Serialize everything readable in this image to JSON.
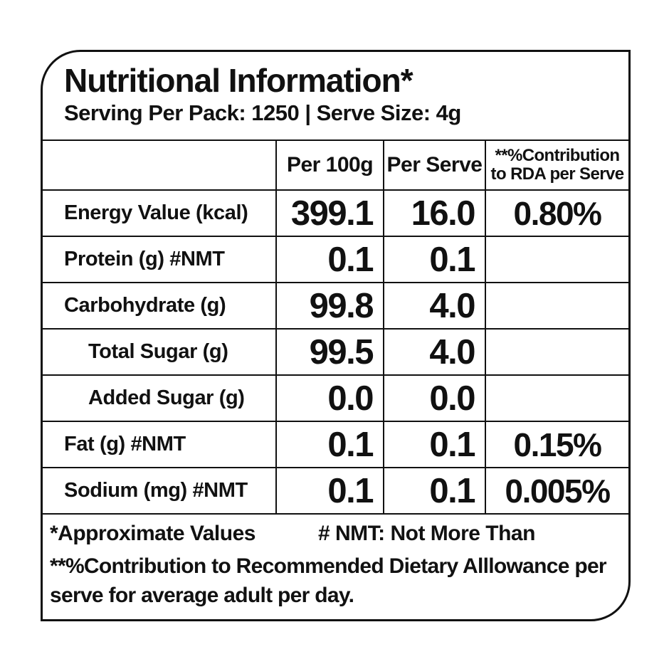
{
  "colors": {
    "ink": "#111111",
    "paper": "#ffffff"
  },
  "header": {
    "title": "Nutritional Information*",
    "subtitle": "Serving Per Pack: 1250 | Serve Size: 4g"
  },
  "table": {
    "column_headers": {
      "nutrient": "",
      "per_100g": "Per 100g",
      "per_serve": "Per Serve",
      "rda_line1": "**%Contribution",
      "rda_line2": "to RDA per Serve"
    },
    "rows": [
      {
        "name": "Energy Value (kcal)",
        "per_100g": "399.1",
        "per_serve": "16.0",
        "rda": "0.80%"
      },
      {
        "name": "Protein (g) #NMT",
        "per_100g": "0.1",
        "per_serve": "0.1",
        "rda": ""
      },
      {
        "name": "Carbohydrate (g)",
        "per_100g": "99.8",
        "per_serve": "4.0",
        "rda": ""
      },
      {
        "name": "Total Sugar (g)",
        "per_100g": "99.5",
        "per_serve": "4.0",
        "rda": ""
      },
      {
        "name": "Added Sugar (g)",
        "per_100g": "0.0",
        "per_serve": "0.0",
        "rda": ""
      },
      {
        "name": "Fat (g)  #NMT",
        "per_100g": "0.1",
        "per_serve": "0.1",
        "rda": "0.15%"
      },
      {
        "name": "Sodium (mg)  #NMT",
        "per_100g": "0.1",
        "per_serve": "0.1",
        "rda": "0.005%"
      }
    ]
  },
  "footnotes": {
    "approx": "*Approximate Values",
    "nmt": "# NMT: Not More Than",
    "rda_note_line1": "**%Contribution to Recommended Dietary Alllowance per",
    "rda_note_line2": "serve for average adult per day."
  }
}
